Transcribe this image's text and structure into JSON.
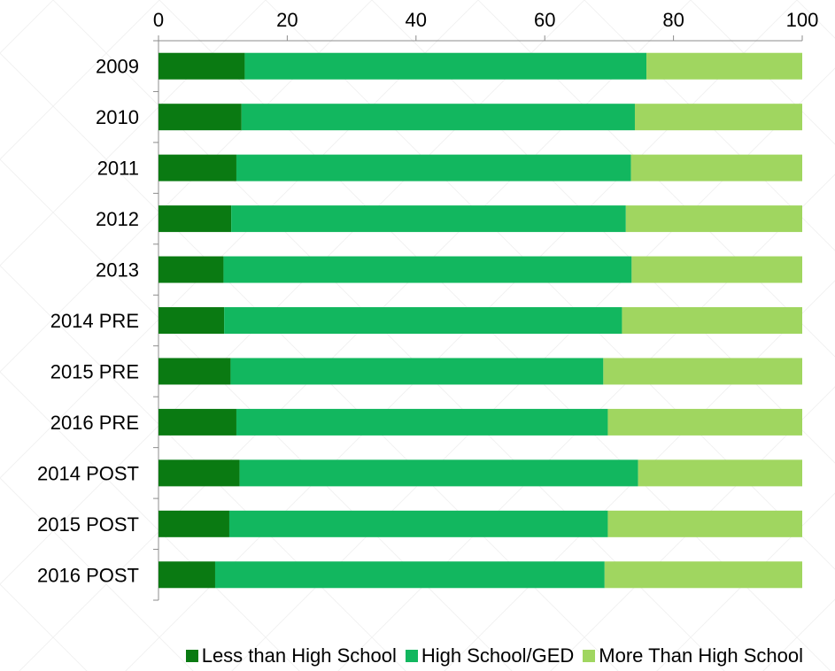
{
  "chart_data": {
    "type": "bar",
    "orientation": "horizontal",
    "stacked": true,
    "categories": [
      "2009",
      "2010",
      "2011",
      "2012",
      "2013",
      "2014 PRE",
      "2015 PRE",
      "2016 PRE",
      "2014 POST",
      "2015 POST",
      "2016 POST"
    ],
    "series": [
      {
        "name": "Less than High School",
        "color": "#0a7a12",
        "values": [
          13.4,
          12.9,
          12.1,
          11.3,
          10.1,
          10.2,
          11.2,
          12.1,
          12.6,
          11.0,
          8.8
        ]
      },
      {
        "name": "High School/GED",
        "color": "#12b75f",
        "values": [
          62.4,
          61.1,
          61.3,
          61.3,
          63.4,
          61.8,
          57.9,
          57.7,
          61.9,
          58.8,
          60.5
        ]
      },
      {
        "name": "More Than High School",
        "color": "#a0d660",
        "values": [
          24.2,
          26.0,
          26.6,
          27.4,
          26.5,
          28.0,
          30.9,
          30.2,
          25.5,
          30.2,
          30.7
        ]
      }
    ],
    "xlim": [
      0,
      100
    ],
    "xticks": [
      "0",
      "20",
      "40",
      "60",
      "80",
      "100"
    ],
    "xaxis_position": "top",
    "grid": false,
    "legend_position": "bottom"
  }
}
